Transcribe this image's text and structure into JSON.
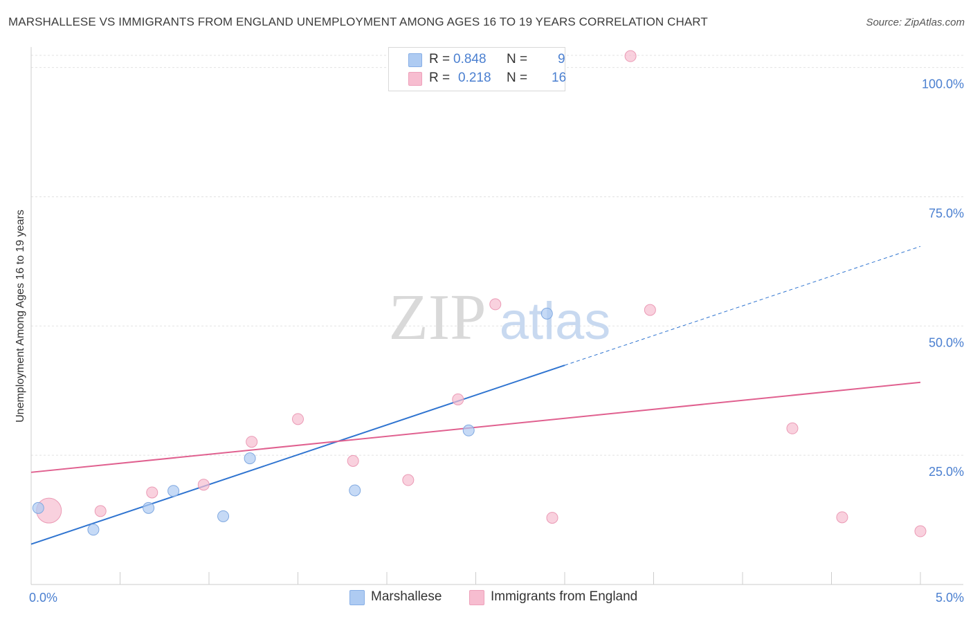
{
  "header": {
    "title": "MARSHALLESE VS IMMIGRANTS FROM ENGLAND UNEMPLOYMENT AMONG AGES 16 TO 19 YEARS CORRELATION CHART",
    "source": "Source: ZipAtlas.com"
  },
  "watermark": {
    "zip": "ZIP",
    "atlas": "atlas"
  },
  "legend": {
    "rows": [
      {
        "r_label": "R =",
        "r_value": "0.848",
        "n_label": "N =",
        "n_value": "9",
        "color": "#aecbf2"
      },
      {
        "r_label": "R =",
        "r_value": "0.218",
        "n_label": "N =",
        "n_value": "16",
        "color": "#f7bdd0"
      }
    ]
  },
  "bottom_legend": [
    {
      "label": "Marshallese",
      "color": "#aecbf2"
    },
    {
      "label": "Immigrants from England",
      "color": "#f7bdd0"
    }
  ],
  "chart_data": {
    "type": "scatter",
    "title": "MARSHALLESE VS IMMIGRANTS FROM ENGLAND UNEMPLOYMENT AMONG AGES 16 TO 19 YEARS CORRELATION CHART",
    "xlabel": "",
    "ylabel": "Unemployment Among Ages 16 to 19 years",
    "xlim": [
      0,
      5
    ],
    "ylim": [
      0,
      100
    ],
    "x_tick_labels": [
      "0.0%",
      "5.0%"
    ],
    "y_tick_labels": [
      "25.0%",
      "50.0%",
      "75.0%",
      "100.0%"
    ],
    "y_ticks": [
      25,
      50,
      75,
      100
    ],
    "grid": true,
    "legend_position": "top-center",
    "series": [
      {
        "name": "Marshallese",
        "color": "#aecbf2",
        "line_color": "#2f74d0",
        "points": [
          {
            "x": 0.04,
            "y": 14.8
          },
          {
            "x": 0.35,
            "y": 10.6
          },
          {
            "x": 0.66,
            "y": 14.8
          },
          {
            "x": 0.8,
            "y": 18.1
          },
          {
            "x": 1.08,
            "y": 13.2
          },
          {
            "x": 1.23,
            "y": 24.4
          },
          {
            "x": 1.82,
            "y": 18.2
          },
          {
            "x": 2.46,
            "y": 29.8
          },
          {
            "x": 2.9,
            "y": 52.4
          }
        ],
        "trend": {
          "x0": 0,
          "y0": 7.8,
          "x1": 3.0,
          "y1": 42.4,
          "dash_to_x": 5.0,
          "dash_to_y": 65.4
        }
      },
      {
        "name": "Immigrants from England",
        "color": "#f7bdd0",
        "line_color": "#e0608f",
        "points": [
          {
            "x": 0.1,
            "y": 14.3,
            "big": true
          },
          {
            "x": 0.39,
            "y": 14.2
          },
          {
            "x": 0.68,
            "y": 17.8
          },
          {
            "x": 0.97,
            "y": 19.3
          },
          {
            "x": 1.24,
            "y": 27.6
          },
          {
            "x": 1.5,
            "y": 32.0
          },
          {
            "x": 1.81,
            "y": 23.9
          },
          {
            "x": 2.12,
            "y": 20.2
          },
          {
            "x": 2.4,
            "y": 35.8
          },
          {
            "x": 2.61,
            "y": 54.2
          },
          {
            "x": 2.93,
            "y": 12.9
          },
          {
            "x": 3.37,
            "y": 102.2
          },
          {
            "x": 3.48,
            "y": 53.1
          },
          {
            "x": 4.28,
            "y": 30.2
          },
          {
            "x": 4.56,
            "y": 13.0
          },
          {
            "x": 5.0,
            "y": 10.3
          }
        ],
        "trend": {
          "x0": 0,
          "y0": 21.7,
          "x1": 5.0,
          "y1": 39.1
        }
      }
    ]
  }
}
